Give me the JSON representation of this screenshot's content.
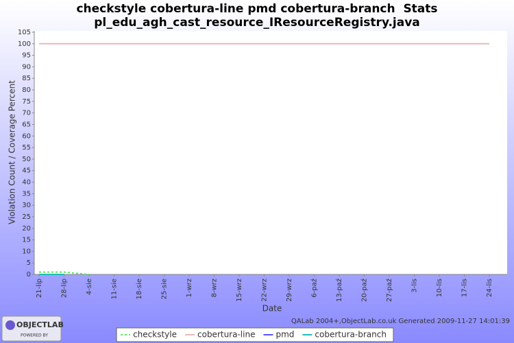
{
  "chart_data": {
    "type": "line",
    "title": "checkstyle cobertura-line pmd cobertura-branch  Stats",
    "subtitle": "pl_edu_agh_cast_resource_IResourceRegistry.java",
    "x_label": "Date",
    "y_label": "Violation Count / Coverage Percent",
    "categories": [
      "21-lip",
      "28-lip",
      "4-sie",
      "11-sie",
      "18-sie",
      "25-sie",
      "1-wrz",
      "8-wrz",
      "15-wrz",
      "22-wrz",
      "29-wrz",
      "6-paź",
      "13-paź",
      "20-paź",
      "27-paź",
      "3-lis",
      "10-lis",
      "17-lis",
      "24-lis"
    ],
    "series": [
      {
        "name": "checkstyle",
        "color": "#55ee55",
        "dashed": true,
        "values": [
          1,
          1,
          0,
          null,
          null,
          null,
          null,
          null,
          null,
          null,
          null,
          null,
          null,
          null,
          null,
          null,
          null,
          null,
          null
        ]
      },
      {
        "name": "cobertura-line",
        "color": "#e8b8b8",
        "dashed": false,
        "values": [
          100,
          100,
          100,
          100,
          100,
          100,
          100,
          100,
          100,
          100,
          100,
          100,
          100,
          100,
          100,
          100,
          100,
          100,
          100
        ]
      },
      {
        "name": "pmd",
        "color": "#5555ff",
        "dashed": false,
        "values": [
          0,
          0,
          null,
          null,
          null,
          null,
          null,
          null,
          null,
          null,
          null,
          null,
          null,
          null,
          null,
          null,
          null,
          null,
          null
        ]
      },
      {
        "name": "cobertura-branch",
        "color": "#22bbbb",
        "dashed": false,
        "values": [
          0,
          0,
          null,
          null,
          null,
          null,
          null,
          null,
          null,
          null,
          null,
          null,
          null,
          null,
          null,
          null,
          null,
          null,
          null
        ]
      }
    ],
    "ylim": [
      0,
      105
    ],
    "yticks": [
      0,
      5,
      10,
      15,
      20,
      25,
      30,
      35,
      40,
      45,
      50,
      55,
      60,
      65,
      70,
      75,
      80,
      85,
      90,
      95,
      100,
      105
    ],
    "grid": false,
    "legend": "bottom",
    "footer": "QALab 2004+,ObjectLab.co.uk Generated 2009-11-27 14:01:39",
    "logo": {
      "name": "OBJECTLAB",
      "tagline": "POWERED BY"
    }
  }
}
